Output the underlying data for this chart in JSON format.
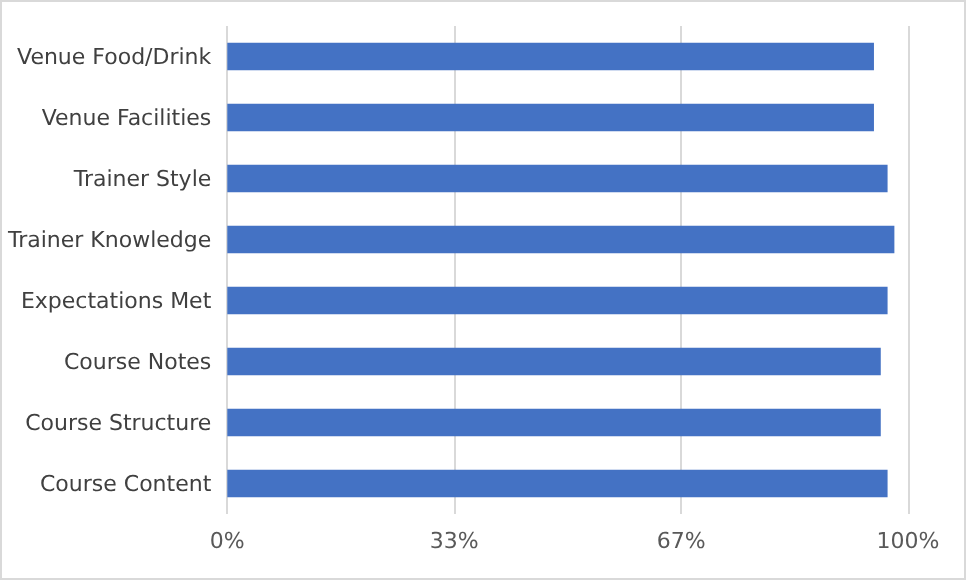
{
  "chart_data": {
    "type": "bar",
    "orientation": "horizontal",
    "categories": [
      "Venue Food/Drink",
      "Venue Facilities",
      "Trainer Style",
      "Trainer Knowledge",
      "Expectations Met",
      "Course Notes",
      "Course Structure",
      "Course Content"
    ],
    "values": [
      0.95,
      0.95,
      0.97,
      0.98,
      0.97,
      0.96,
      0.96,
      0.97
    ],
    "color": "#4472c4",
    "xlim": [
      0,
      1
    ],
    "xticks": [
      {
        "value": 0,
        "label": "0%"
      },
      {
        "value": 0.3333,
        "label": "33%"
      },
      {
        "value": 0.6667,
        "label": "67%"
      },
      {
        "value": 1,
        "label": "100%"
      }
    ],
    "grid": "x"
  }
}
